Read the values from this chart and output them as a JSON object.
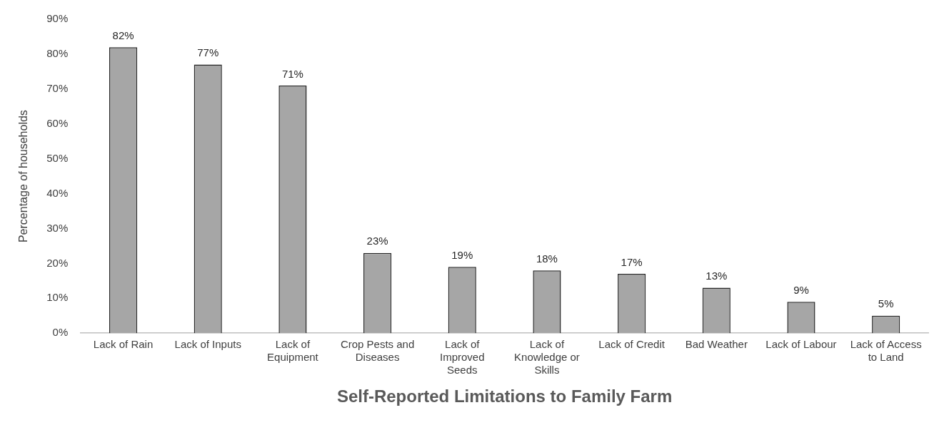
{
  "chart_data": {
    "type": "bar",
    "xlabel": "Self-Reported Limitations to Family Farm",
    "ylabel": "Percentage of households",
    "categories": [
      "Lack of Rain",
      "Lack of Inputs",
      "Lack of Equipment",
      "Crop Pests and Diseases",
      "Lack of Improved Seeds",
      "Lack of Knowledge or Skills",
      "Lack of Credit",
      "Bad Weather",
      "Lack of Labour",
      "Lack of Access to Land"
    ],
    "values": [
      82,
      77,
      71,
      23,
      19,
      18,
      17,
      13,
      9,
      5
    ],
    "value_labels": [
      "82%",
      "77%",
      "71%",
      "23%",
      "19%",
      "18%",
      "17%",
      "13%",
      "9%",
      "5%"
    ],
    "color": "#a6a6a6",
    "ylim": [
      0,
      90
    ],
    "yticks": [
      {
        "value": 0,
        "label": "0%"
      },
      {
        "value": 10,
        "label": "10%"
      },
      {
        "value": 20,
        "label": "20%"
      },
      {
        "value": 30,
        "label": "30%"
      },
      {
        "value": 40,
        "label": "40%"
      },
      {
        "value": 50,
        "label": "50%"
      },
      {
        "value": 60,
        "label": "60%"
      },
      {
        "value": 70,
        "label": "70%"
      },
      {
        "value": 80,
        "label": "80%"
      },
      {
        "value": 90,
        "label": "90%"
      }
    ],
    "grid": false,
    "legend": false
  }
}
